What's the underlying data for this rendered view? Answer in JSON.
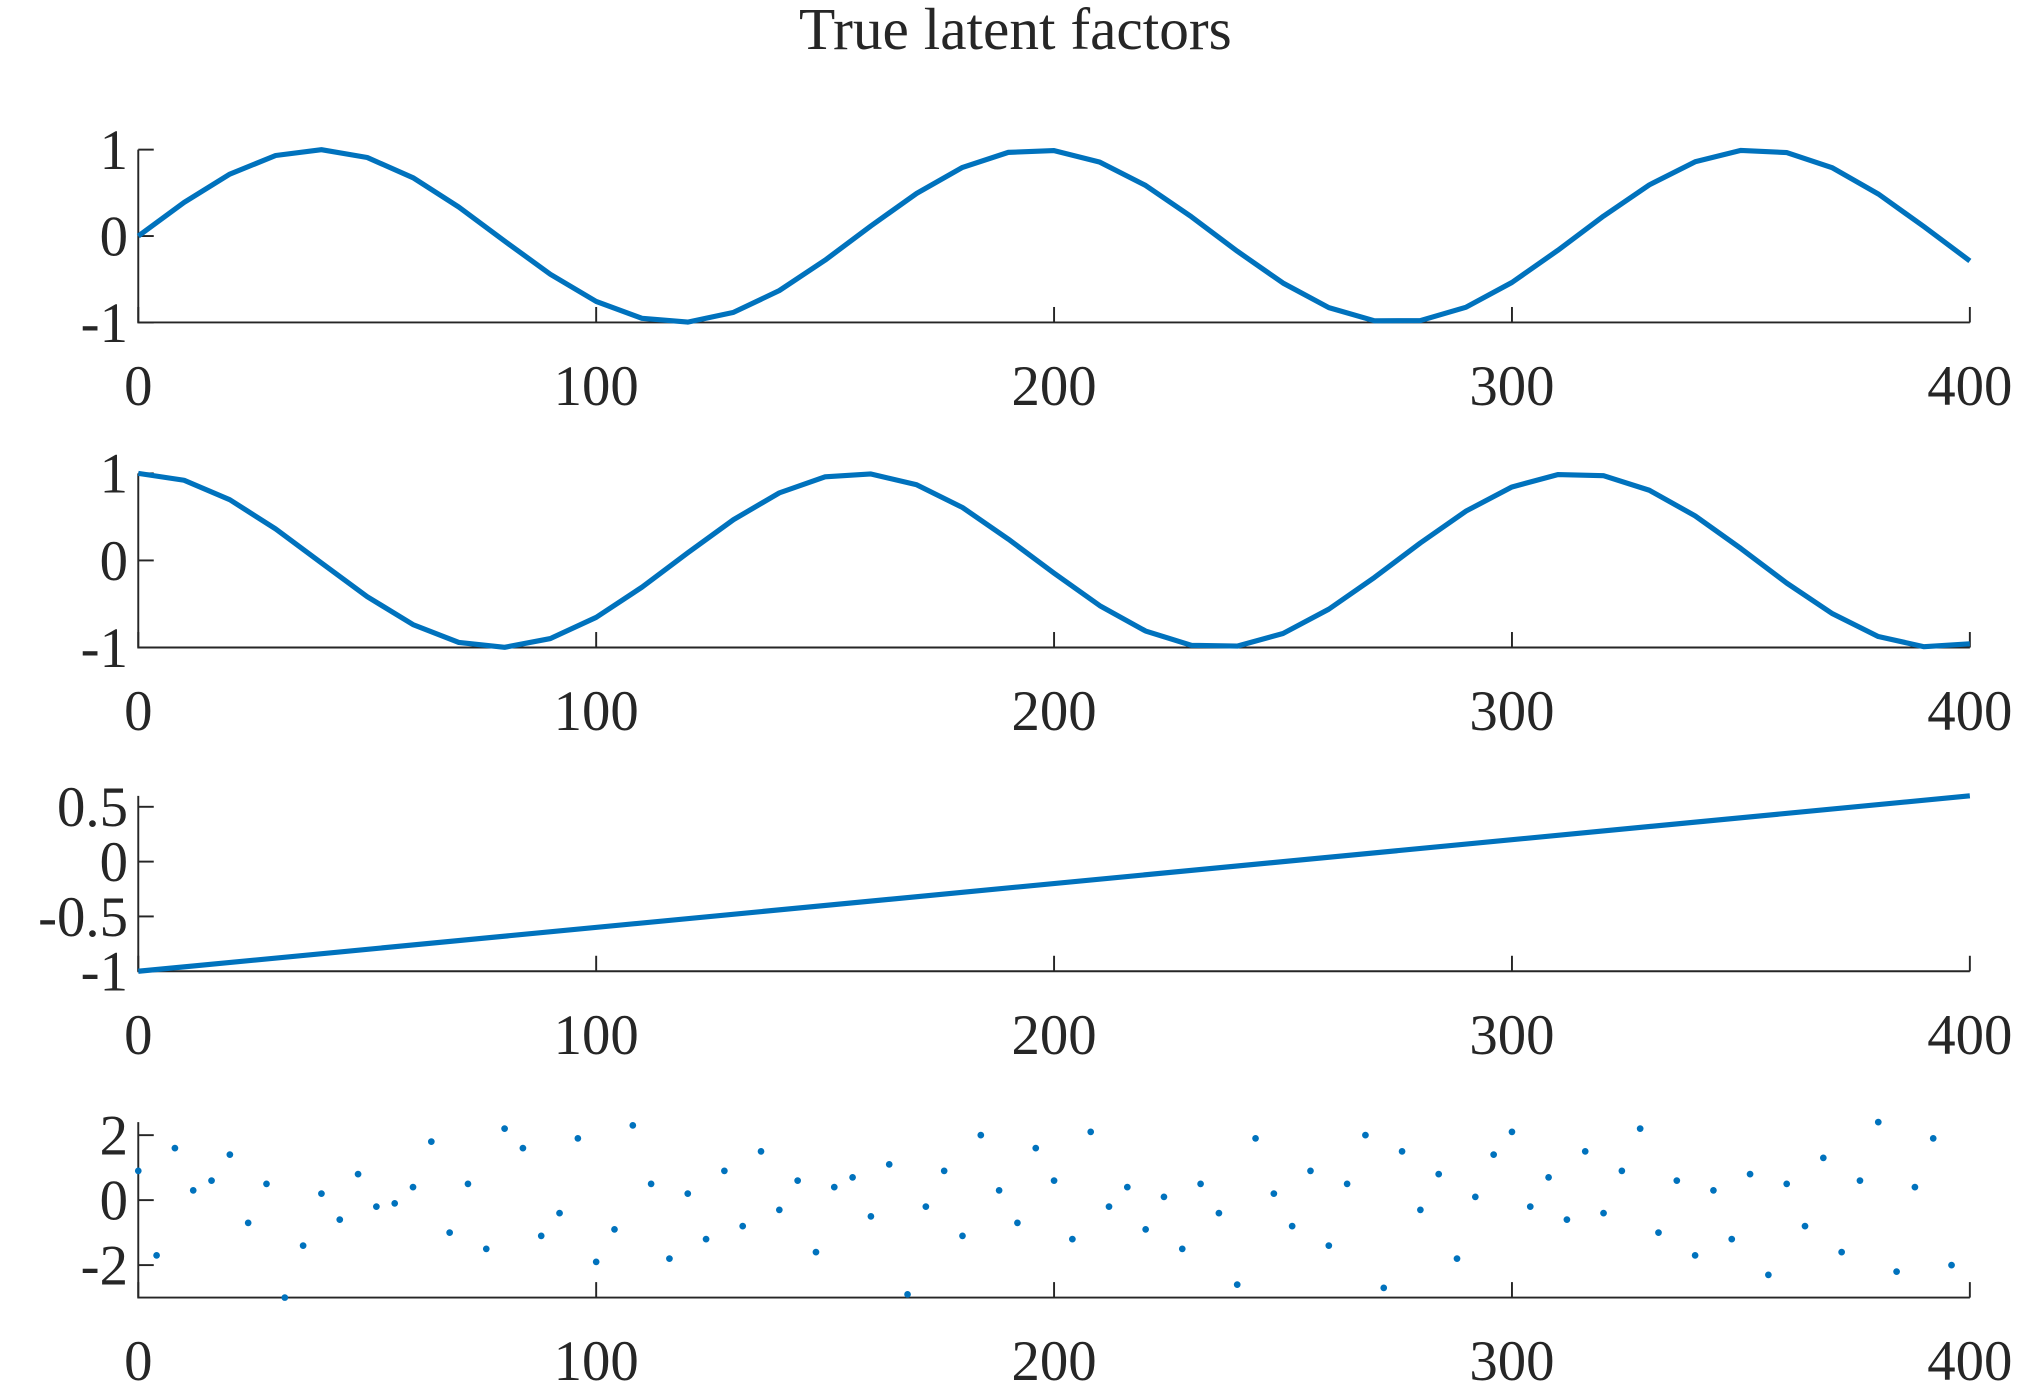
{
  "chart_data": [
    {
      "type": "line",
      "title": "True latent factors",
      "color": "#0072bd",
      "x": [
        0,
        10,
        20,
        30,
        40,
        50,
        60,
        70,
        80,
        90,
        100,
        110,
        120,
        130,
        140,
        150,
        160,
        170,
        180,
        190,
        200,
        210,
        220,
        230,
        240,
        250,
        260,
        270,
        280,
        290,
        300,
        310,
        320,
        330,
        340,
        350,
        360,
        370,
        380,
        390,
        400
      ],
      "values": [
        0,
        0.389,
        0.717,
        0.932,
        0.9996,
        0.909,
        0.675,
        0.335,
        -0.058,
        -0.443,
        -0.757,
        -0.952,
        -0.996,
        -0.883,
        -0.631,
        -0.279,
        0.117,
        0.494,
        0.794,
        0.968,
        0.989,
        0.855,
        0.585,
        0.223,
        -0.175,
        -0.544,
        -0.828,
        -0.981,
        -0.978,
        -0.823,
        -0.537,
        -0.166,
        0.231,
        0.592,
        0.859,
        0.991,
        0.966,
        0.789,
        0.487,
        0.108,
        -0.288
      ],
      "xlim": [
        0,
        400
      ],
      "ylim": [
        -1,
        1
      ],
      "xticks": [
        0,
        100,
        200,
        300,
        400
      ],
      "yticks": [
        -1,
        0,
        1
      ]
    },
    {
      "type": "line",
      "color": "#0072bd",
      "x": [
        0,
        10,
        20,
        30,
        40,
        50,
        60,
        70,
        80,
        90,
        100,
        110,
        120,
        130,
        140,
        150,
        160,
        170,
        180,
        190,
        200,
        210,
        220,
        230,
        240,
        250,
        260,
        270,
        280,
        290,
        300,
        310,
        320,
        330,
        340,
        350,
        360,
        370,
        380,
        390,
        400
      ],
      "values": [
        1,
        0.921,
        0.697,
        0.362,
        -0.029,
        -0.416,
        -0.737,
        -0.942,
        -0.998,
        -0.897,
        -0.654,
        -0.307,
        0.087,
        0.469,
        0.776,
        0.96,
        0.993,
        0.869,
        0.608,
        0.245,
        -0.146,
        -0.52,
        -0.811,
        -0.975,
        -0.984,
        -0.839,
        -0.56,
        -0.194,
        0.201,
        0.568,
        0.844,
        0.986,
        0.973,
        0.806,
        0.512,
        0.137,
        -0.26,
        -0.612,
        -0.874,
        -0.991,
        -0.958
      ],
      "xlim": [
        0,
        400
      ],
      "ylim": [
        -1,
        1
      ],
      "xticks": [
        0,
        100,
        200,
        300,
        400
      ],
      "yticks": [
        -1,
        0,
        1
      ]
    },
    {
      "type": "line",
      "color": "#0072bd",
      "x": [
        0,
        400
      ],
      "values": [
        -1,
        0.6
      ],
      "xlim": [
        0,
        400
      ],
      "ylim": [
        -1,
        0.6
      ],
      "xticks": [
        0,
        100,
        200,
        300,
        400
      ],
      "yticks": [
        -1,
        -0.5,
        0,
        0.5
      ]
    },
    {
      "type": "scatter",
      "color": "#0072bd",
      "x": [
        0,
        4,
        8,
        12,
        16,
        20,
        24,
        28,
        32,
        36,
        40,
        44,
        48,
        52,
        56,
        60,
        64,
        68,
        72,
        76,
        80,
        84,
        88,
        92,
        96,
        100,
        104,
        108,
        112,
        116,
        120,
        124,
        128,
        132,
        136,
        140,
        144,
        148,
        152,
        156,
        160,
        164,
        168,
        172,
        176,
        180,
        184,
        188,
        192,
        196,
        200,
        204,
        208,
        212,
        216,
        220,
        224,
        228,
        232,
        236,
        240,
        244,
        248,
        252,
        256,
        260,
        264,
        268,
        272,
        276,
        280,
        284,
        288,
        292,
        296,
        300,
        304,
        308,
        312,
        316,
        320,
        324,
        328,
        332,
        336,
        340,
        344,
        348,
        352,
        356,
        360,
        364,
        368,
        372,
        376,
        380,
        384,
        388,
        392,
        396
      ],
      "values": [
        0.9,
        -1.7,
        1.6,
        0.3,
        0.6,
        1.4,
        -0.7,
        0.5,
        -3.0,
        -1.4,
        0.2,
        -0.6,
        0.8,
        -0.2,
        -0.1,
        0.4,
        1.8,
        -1.0,
        0.5,
        -1.5,
        2.2,
        1.6,
        -1.1,
        -0.4,
        1.9,
        -1.9,
        -0.9,
        2.3,
        0.5,
        -1.8,
        0.2,
        -1.2,
        0.9,
        -0.8,
        1.5,
        -0.3,
        0.6,
        -1.6,
        0.4,
        0.7,
        -0.5,
        1.1,
        -2.9,
        -0.2,
        0.9,
        -1.1,
        2.0,
        0.3,
        -0.7,
        1.6,
        0.6,
        -1.2,
        2.1,
        -0.2,
        0.4,
        -0.9,
        0.1,
        -1.5,
        0.5,
        -0.4,
        -2.6,
        1.9,
        0.2,
        -0.8,
        0.9,
        -1.4,
        0.5,
        2.0,
        -2.7,
        1.5,
        -0.3,
        0.8,
        -1.8,
        0.1,
        1.4,
        2.1,
        -0.2,
        0.7,
        -0.6,
        1.5,
        -0.4,
        0.9,
        2.2,
        -1.0,
        0.6,
        -1.7,
        0.3,
        -1.2,
        0.8,
        -2.3,
        0.5,
        -0.8,
        1.3,
        -1.6,
        0.6,
        2.4,
        -2.2,
        0.4,
        1.9,
        -2.0
      ],
      "xlim": [
        0,
        400
      ],
      "ylim": [
        -3,
        2.4
      ],
      "xticks": [
        0,
        100,
        200,
        300,
        400
      ],
      "yticks": [
        -2,
        0,
        2
      ]
    }
  ]
}
